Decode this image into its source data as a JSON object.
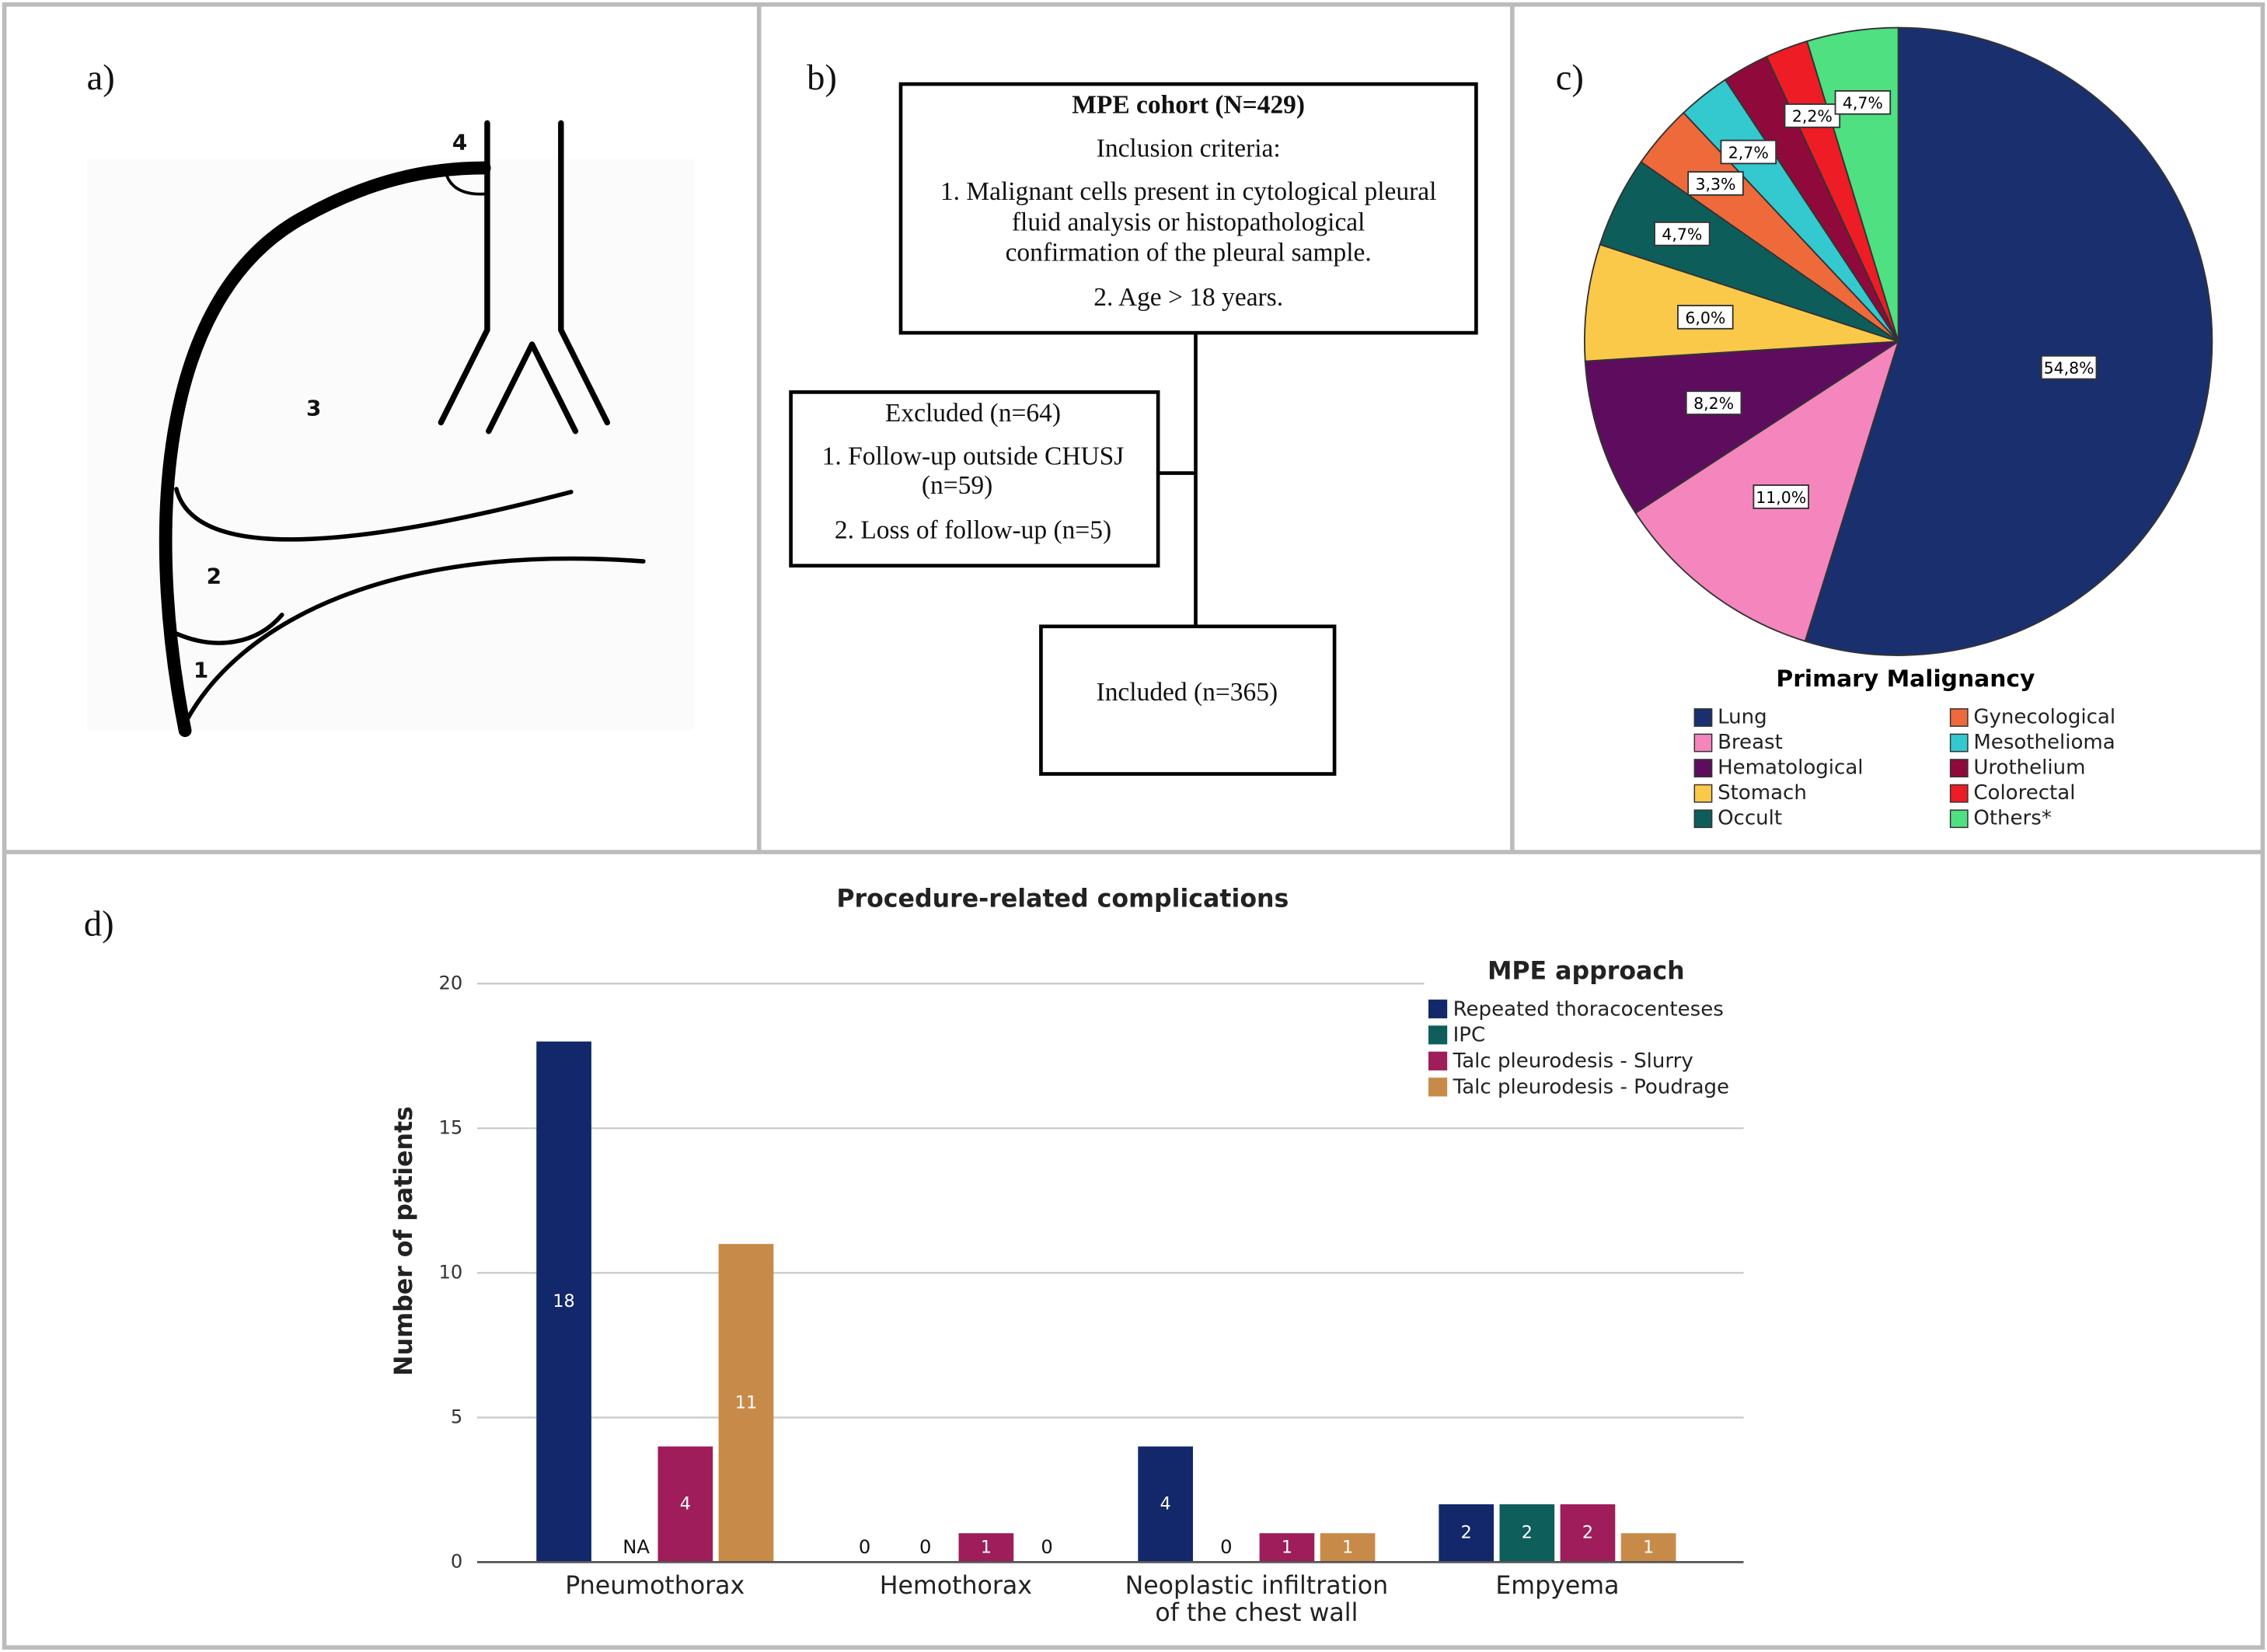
{
  "diagram": {
    "panel_label": "a)",
    "regions": [
      "4",
      "3",
      "2",
      "1"
    ]
  },
  "flowchart": {
    "panel_label": "b)",
    "cohort": {
      "title": "MPE cohort (N=429)",
      "lines": [
        "Inclusion criteria:",
        "1. Malignant cells present in cytological pleural",
        "fluid analysis  or  histopathological",
        "confirmation of the pleural sample.",
        "2. Age > 18 years."
      ]
    },
    "excluded": {
      "lines": [
        "Excluded (n=64)",
        "1. Follow-up outside CHUSJ",
        "(n=59)",
        "2. Loss of follow-up (n=5)"
      ]
    },
    "included": {
      "lines": [
        "Included (n=365)"
      ]
    }
  },
  "chart_data": [
    {
      "type": "pie",
      "panel_label": "c)",
      "legend_title": "Primary Malignancy",
      "categories": [
        "Lung",
        "Breast",
        "Hematological",
        "Stomach",
        "Occult",
        "Gynecological",
        "Mesothelioma",
        "Urothelium",
        "Colorectal",
        "Others*"
      ],
      "values": [
        54.8,
        11.0,
        8.2,
        6.0,
        4.7,
        3.3,
        2.7,
        2.4,
        2.2,
        4.7
      ],
      "value_labels": [
        "54,8%",
        "11,0%",
        "8,2%",
        "6,0%",
        "4,7%",
        "3,3%",
        "2,7%",
        null,
        "2,2%",
        "4,7%"
      ],
      "colors": [
        "#1a2f6e",
        "#f585bd",
        "#5e0d5e",
        "#fbc94a",
        "#0d5e5a",
        "#ee6a3a",
        "#33c9cf",
        "#8f0a3a",
        "#ee1c24",
        "#4ee081"
      ]
    },
    {
      "type": "bar",
      "panel_label": "d)",
      "title": "Procedure-related complications",
      "y_label": "Number of patients",
      "legend_title": "MPE approach",
      "categories": [
        "Pneumothorax",
        "Hemothorax",
        "Neoplastic infiltration\nof the chest wall",
        "Empyema"
      ],
      "series": [
        {
          "name": "Repeated thoracocenteses",
          "color": "#12286b",
          "values": [
            18,
            0,
            4,
            2
          ]
        },
        {
          "name": "IPC",
          "color": "#0e5e5c",
          "values": [
            null,
            0,
            0,
            2
          ],
          "value_labels": [
            "NA",
            "0",
            "0",
            "2"
          ]
        },
        {
          "name": "Talc pleurodesis - Slurry",
          "color": "#9e1d5a",
          "values": [
            4,
            1,
            1,
            2
          ]
        },
        {
          "name": "Talc pleurodesis - Poudrage",
          "color": "#c88a48",
          "values": [
            11,
            0,
            1,
            1
          ]
        }
      ],
      "ylim": [
        0,
        20
      ],
      "yticks": [
        0,
        5,
        10,
        15,
        20
      ],
      "grid": true
    }
  ]
}
